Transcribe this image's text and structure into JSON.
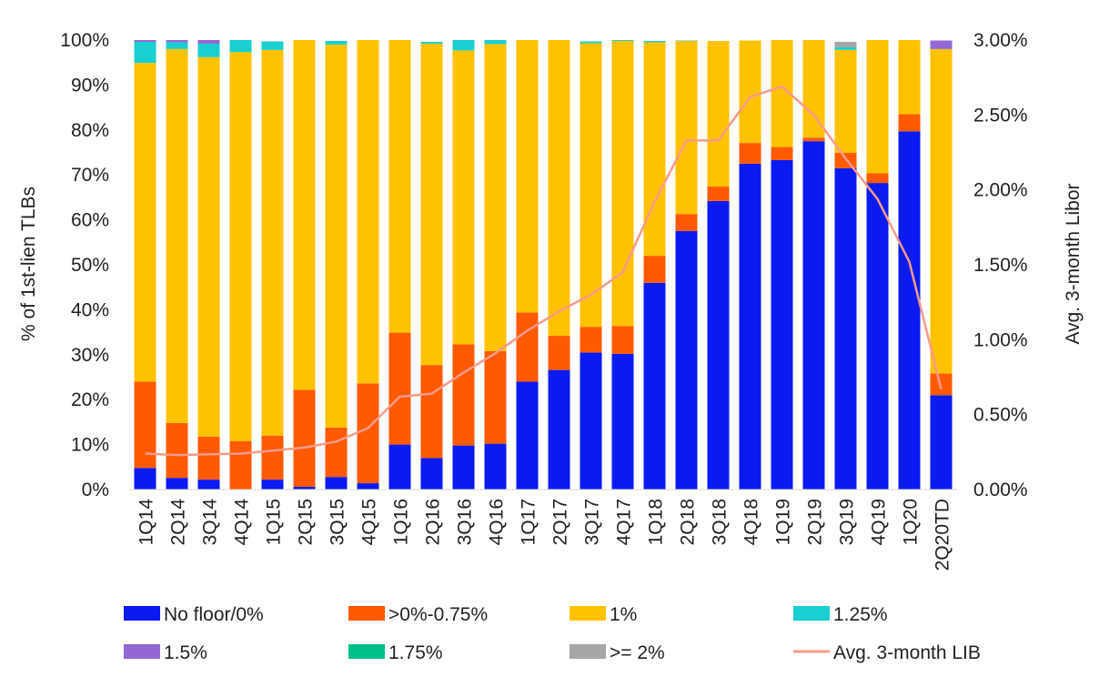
{
  "chart_data": {
    "type": "bar",
    "stacked": true,
    "categories": [
      "1Q14",
      "2Q14",
      "3Q14",
      "4Q14",
      "1Q15",
      "2Q15",
      "3Q15",
      "4Q15",
      "1Q16",
      "2Q16",
      "3Q16",
      "4Q16",
      "1Q17",
      "2Q17",
      "3Q17",
      "4Q17",
      "1Q18",
      "2Q18",
      "3Q18",
      "4Q18",
      "1Q19",
      "2Q19",
      "3Q19",
      "4Q19",
      "1Q20",
      "2Q20TD"
    ],
    "series": [
      {
        "name": "No floor/0%",
        "color": "#0a1af0",
        "values": [
          4.8,
          2.6,
          2.2,
          0,
          2.2,
          0.6,
          2.8,
          1.4,
          10.0,
          7.0,
          9.8,
          10.2,
          24.0,
          26.6,
          30.5,
          30.2,
          46.0,
          57.5,
          64.2,
          72.5,
          73.3,
          77.5,
          71.5,
          68.2,
          79.7,
          21.0
        ]
      },
      {
        "name": ">0%-0.75%",
        "color": "#ff5a00",
        "values": [
          19.2,
          12.2,
          9.6,
          10.8,
          9.8,
          21.6,
          11.0,
          22.2,
          24.9,
          20.7,
          22.5,
          20.6,
          15.4,
          7.6,
          5.7,
          6.2,
          6.0,
          3.8,
          3.2,
          4.6,
          2.9,
          0.8,
          3.4,
          2.2,
          3.8,
          4.8
        ]
      },
      {
        "name": "1%",
        "color": "#ffc200",
        "values": [
          70.9,
          83.2,
          84.4,
          86.5,
          85.8,
          77.8,
          85.2,
          76.4,
          65.1,
          71.5,
          65.4,
          68.3,
          60.6,
          65.8,
          63.1,
          63.4,
          47.5,
          38.5,
          32.4,
          22.8,
          23.8,
          21.7,
          22.9,
          29.6,
          16.5,
          72.2
        ]
      },
      {
        "name": "1.25%",
        "color": "#1acfcf",
        "values": [
          4.7,
          1.5,
          3.0,
          2.7,
          1.9,
          0,
          0.8,
          0,
          0,
          0.4,
          2.3,
          0.9,
          0,
          0,
          0.4,
          0.2,
          0.3,
          0.1,
          0,
          0,
          0,
          0,
          0.6,
          0,
          0,
          0
        ]
      },
      {
        "name": "1.5%",
        "color": "#9467d6",
        "values": [
          0.4,
          0.5,
          0.8,
          0,
          0,
          0,
          0,
          0,
          0,
          0,
          0,
          0,
          0,
          0,
          0,
          0,
          0,
          0,
          0,
          0,
          0,
          0,
          0,
          0,
          0,
          1.9
        ]
      },
      {
        "name": "1.75%",
        "color": "#00c08a",
        "values": [
          0,
          0,
          0,
          0,
          0,
          0,
          0,
          0,
          0,
          0,
          0,
          0,
          0,
          0,
          0,
          0,
          0,
          0,
          0,
          0,
          0,
          0,
          0,
          0,
          0,
          0
        ]
      },
      {
        "name": ">= 2%",
        "color": "#a6a6a6",
        "values": [
          0,
          0,
          0,
          0,
          0,
          0,
          0,
          0,
          0,
          0,
          0,
          0,
          0,
          0,
          0,
          0,
          0,
          0,
          0,
          0,
          0,
          0,
          1.2,
          0,
          0,
          0
        ]
      }
    ],
    "line_series": {
      "name": "Avg. 3-month LIB",
      "color": "#f79a8a",
      "axis": "right",
      "values": [
        0.24,
        0.23,
        0.235,
        0.24,
        0.26,
        0.28,
        0.32,
        0.41,
        0.62,
        0.64,
        0.78,
        0.91,
        1.06,
        1.19,
        1.3,
        1.45,
        1.92,
        2.33,
        2.33,
        2.62,
        2.69,
        2.5,
        2.21,
        1.94,
        1.52,
        0.67
      ]
    },
    "left_axis": {
      "label": "% of 1st-lien TLBs",
      "ticks": [
        "0%",
        "10%",
        "20%",
        "30%",
        "40%",
        "50%",
        "60%",
        "70%",
        "80%",
        "90%",
        "100%"
      ],
      "range": [
        0,
        100
      ]
    },
    "right_axis": {
      "label": "Avg. 3-month Libor",
      "ticks": [
        "0.00%",
        "0.50%",
        "1.00%",
        "1.50%",
        "2.00%",
        "2.50%",
        "3.00%"
      ],
      "range": [
        0,
        3
      ]
    },
    "legend_position": "bottom"
  }
}
